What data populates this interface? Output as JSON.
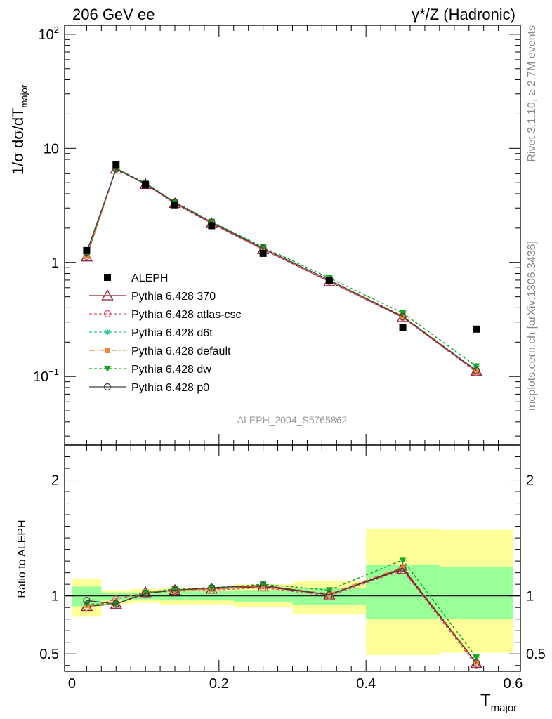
{
  "header": {
    "left": "206 GeV ee",
    "right": "γ*/Z (Hadronic)"
  },
  "side": {
    "rivet": "Rivet 3.1.10, ≥ 2.7M events",
    "source": "mcplots.cern.ch [arXiv:1306.3436]"
  },
  "analysis_label": "ALEPH_2004_S5765862",
  "colors": {
    "data": "#000000",
    "p370": "#8b1a2a",
    "atlas": "#e8506a",
    "d6t": "#2ec4a0",
    "default": "#f08a3a",
    "dw": "#1aa51a",
    "p0": "#404040",
    "band_outer": "#ffff99",
    "band_inner": "#99ff99"
  },
  "chart_data": [
    {
      "type": "line",
      "panel": "main",
      "ylabel": "1/σ  dσ/dT",
      "ylabel_sub": "major",
      "yscale": "log",
      "ylim": [
        0.025,
        120
      ],
      "xlim": [
        -0.01,
        0.61
      ],
      "y_ticks": [
        {
          "v": 0.1,
          "label": "10",
          "sup": "−1"
        },
        {
          "v": 1,
          "label": "1",
          "sup": ""
        },
        {
          "v": 10,
          "label": "10",
          "sup": ""
        },
        {
          "v": 100,
          "label": "10",
          "sup": "2"
        }
      ],
      "legend_position": "middle-left",
      "x": [
        0.02,
        0.06,
        0.1,
        0.14,
        0.19,
        0.26,
        0.35,
        0.45,
        0.55
      ],
      "data_series": {
        "name": "ALEPH",
        "values": [
          1.27,
          7.2,
          4.8,
          3.2,
          2.1,
          1.2,
          0.69,
          0.27,
          0.26
        ]
      },
      "series": [
        {
          "key": "p370",
          "name": "Pythia 6.428 370",
          "values": [
            1.12,
            6.6,
            4.85,
            3.3,
            2.2,
            1.3,
            0.68,
            0.33,
            0.112
          ]
        },
        {
          "key": "atlas",
          "name": "Pythia 6.428 atlas-csc",
          "values": [
            1.13,
            6.7,
            4.85,
            3.3,
            2.2,
            1.3,
            0.68,
            0.33,
            0.109
          ]
        },
        {
          "key": "d6t",
          "name": "Pythia 6.428 d6t",
          "values": [
            1.18,
            6.7,
            4.95,
            3.4,
            2.28,
            1.36,
            0.73,
            0.36,
            0.123
          ]
        },
        {
          "key": "default",
          "name": "Pythia 6.428 default",
          "values": [
            1.15,
            6.6,
            4.9,
            3.35,
            2.25,
            1.33,
            0.7,
            0.34,
            0.113
          ]
        },
        {
          "key": "dw",
          "name": "Pythia 6.428 dw",
          "values": [
            1.18,
            6.7,
            4.95,
            3.4,
            2.28,
            1.36,
            0.73,
            0.36,
            0.123
          ]
        },
        {
          "key": "p0",
          "name": "Pythia 6.428 p0",
          "values": [
            1.23,
            6.6,
            4.9,
            3.35,
            2.25,
            1.33,
            0.7,
            0.335,
            0.113
          ]
        }
      ]
    },
    {
      "type": "line",
      "panel": "ratio",
      "ylabel": "Ratio to ALEPH",
      "xlabel": "T",
      "xlabel_sub": "major",
      "ylim": [
        0.35,
        2.3
      ],
      "xlim": [
        -0.01,
        0.61
      ],
      "x_ticks": [
        0,
        0.2,
        0.4,
        0.6
      ],
      "x_tick_labels": [
        "0",
        "0.2",
        "0.4",
        "0.6"
      ],
      "y_ticks": [
        0.5,
        1,
        2
      ],
      "y_tick_labels": [
        "0.5",
        "1",
        "2"
      ],
      "bins": [
        {
          "x0": 0.0,
          "x1": 0.04,
          "outer": [
            0.82,
            1.15
          ],
          "inner": [
            0.91,
            1.08
          ]
        },
        {
          "x0": 0.04,
          "x1": 0.08,
          "outer": [
            0.93,
            1.05
          ],
          "inner": [
            0.96,
            1.03
          ]
        },
        {
          "x0": 0.08,
          "x1": 0.12,
          "outer": [
            0.94,
            1.06
          ],
          "inner": [
            0.97,
            1.03
          ]
        },
        {
          "x0": 0.12,
          "x1": 0.16,
          "outer": [
            0.92,
            1.07
          ],
          "inner": [
            0.96,
            1.04
          ]
        },
        {
          "x0": 0.16,
          "x1": 0.22,
          "outer": [
            0.92,
            1.07
          ],
          "inner": [
            0.96,
            1.04
          ]
        },
        {
          "x0": 0.22,
          "x1": 0.3,
          "outer": [
            0.9,
            1.1
          ],
          "inner": [
            0.95,
            1.05
          ]
        },
        {
          "x0": 0.3,
          "x1": 0.4,
          "outer": [
            0.84,
            1.13
          ],
          "inner": [
            0.92,
            1.07
          ]
        },
        {
          "x0": 0.4,
          "x1": 0.5,
          "outer": [
            0.49,
            1.58
          ],
          "inner": [
            0.8,
            1.27
          ]
        },
        {
          "x0": 0.5,
          "x1": 0.6,
          "outer": [
            0.51,
            1.57
          ],
          "inner": [
            0.8,
            1.25
          ]
        }
      ],
      "x": [
        0.02,
        0.06,
        0.1,
        0.14,
        0.19,
        0.26,
        0.35,
        0.45,
        0.55
      ],
      "series": [
        {
          "key": "p370",
          "name": "Pythia 6.428 370",
          "values": [
            0.91,
            0.93,
            1.03,
            1.05,
            1.06,
            1.08,
            1.01,
            1.23,
            0.42
          ]
        },
        {
          "key": "atlas",
          "name": "Pythia 6.428 atlas-csc",
          "values": [
            0.9,
            0.97,
            1.03,
            1.04,
            1.05,
            1.07,
            1.0,
            1.22,
            0.4
          ]
        },
        {
          "key": "d6t",
          "name": "Pythia 6.428 d6t",
          "values": [
            0.93,
            0.93,
            1.03,
            1.06,
            1.07,
            1.1,
            1.05,
            1.31,
            0.47
          ]
        },
        {
          "key": "default",
          "name": "Pythia 6.428 default",
          "values": [
            0.92,
            0.93,
            1.03,
            1.05,
            1.06,
            1.09,
            1.02,
            1.25,
            0.43
          ]
        },
        {
          "key": "dw",
          "name": "Pythia 6.428 dw",
          "values": [
            0.93,
            0.93,
            1.03,
            1.06,
            1.07,
            1.1,
            1.05,
            1.31,
            0.47
          ]
        },
        {
          "key": "p0",
          "name": "Pythia 6.428 p0",
          "values": [
            0.96,
            0.93,
            1.02,
            1.05,
            1.07,
            1.09,
            1.01,
            1.24,
            0.42
          ]
        }
      ]
    }
  ]
}
